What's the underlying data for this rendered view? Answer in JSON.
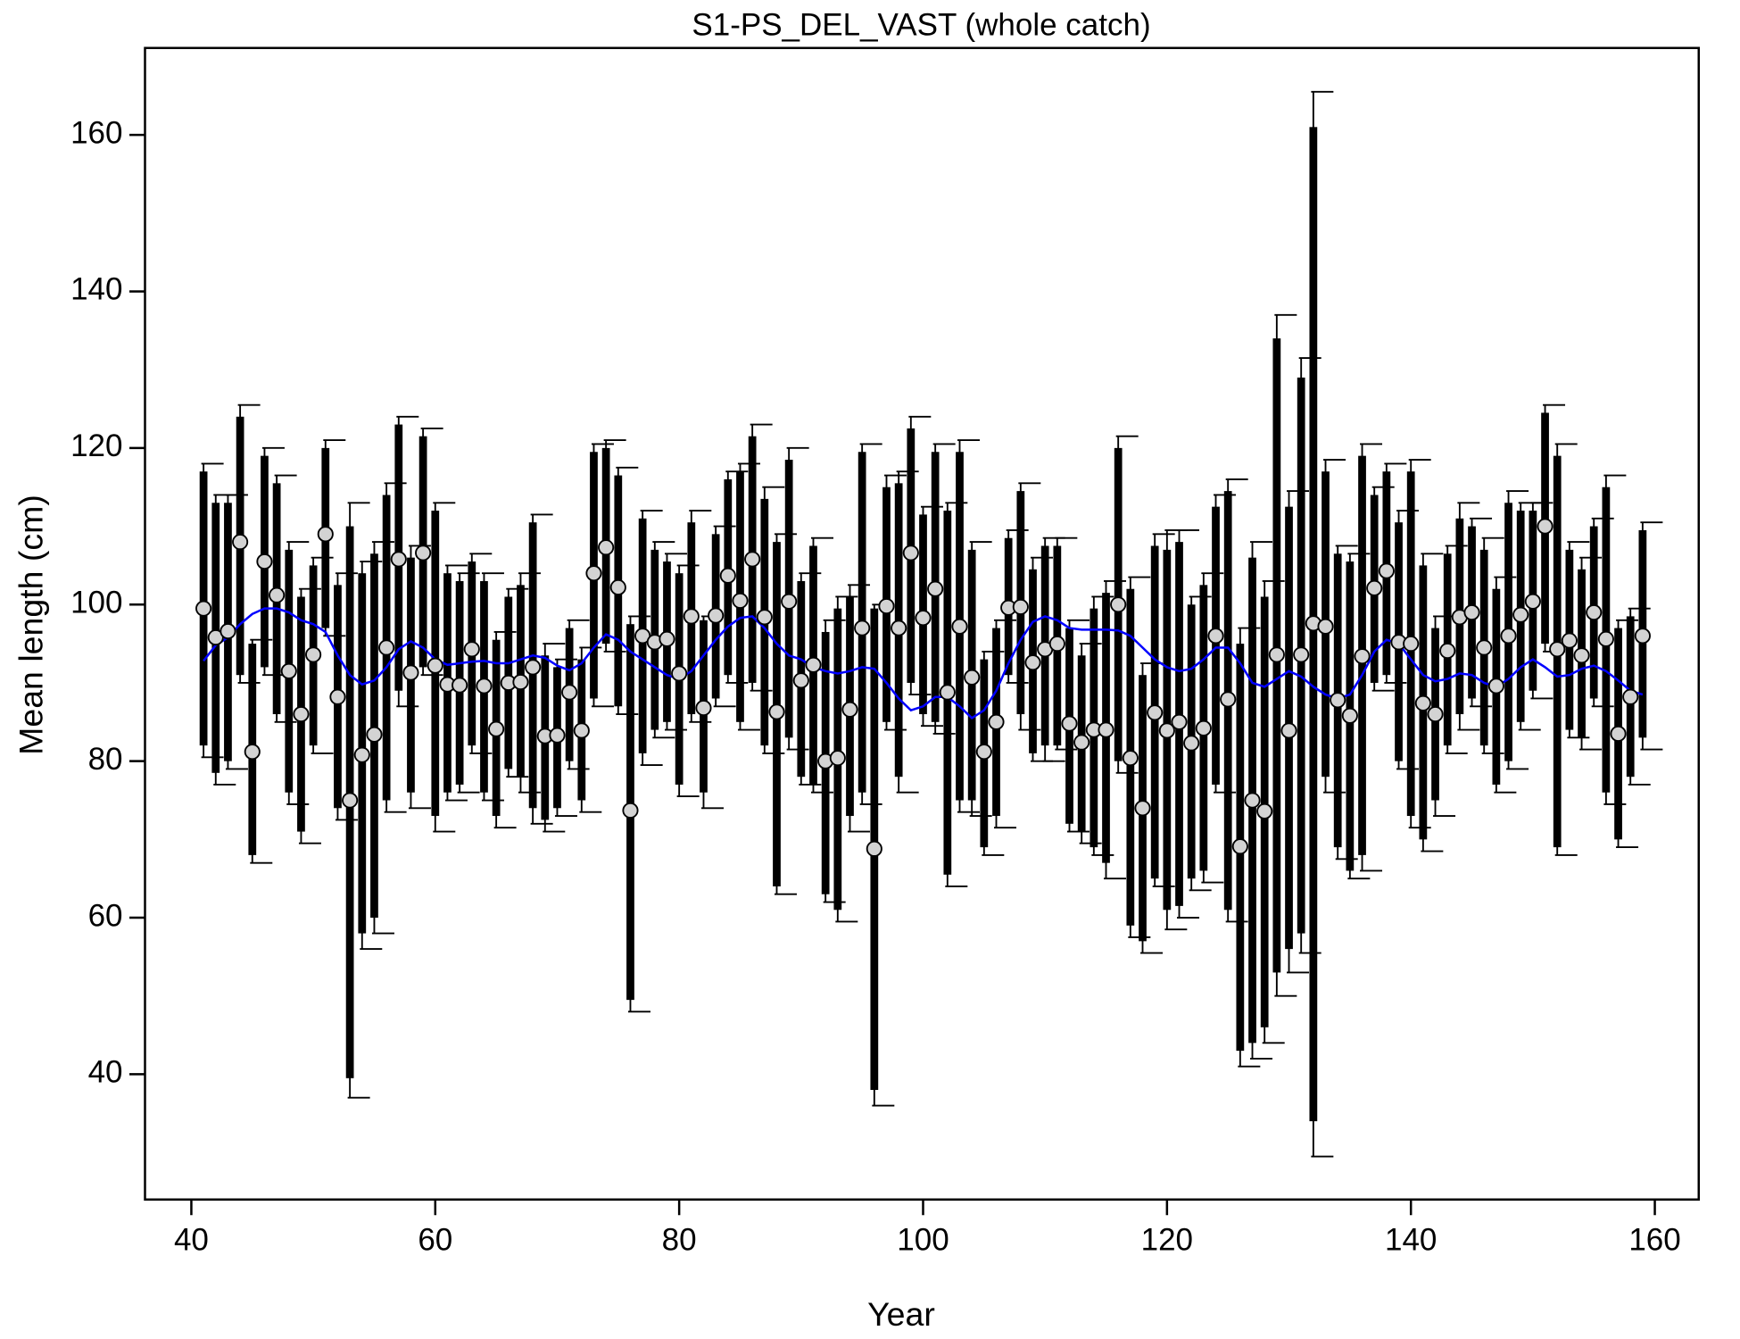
{
  "chart_data": {
    "type": "errorbar",
    "title": "S1-PS_DEL_VAST (whole catch)",
    "x_label": "Year",
    "y_label": "Mean length (cm)",
    "xlim": [
      36.2,
      163.6
    ],
    "ylim": [
      24.0,
      171.1
    ],
    "xticks": [
      40,
      60,
      80,
      100,
      120,
      140,
      160
    ],
    "yticks": [
      40,
      60,
      80,
      100,
      120,
      140,
      160
    ],
    "point_color": "#d3d3d3",
    "bar_color": "#000000",
    "smooth_color": "#0000ff",
    "x": [
      41,
      42,
      43,
      44,
      45,
      46,
      47,
      48,
      49,
      50,
      51,
      52,
      53,
      54,
      55,
      56,
      57,
      58,
      59,
      60,
      61,
      62,
      63,
      64,
      65,
      66,
      67,
      68,
      69,
      70,
      71,
      72,
      73,
      74,
      75,
      76,
      77,
      78,
      79,
      80,
      81,
      82,
      83,
      84,
      85,
      86,
      87,
      88,
      89,
      90,
      91,
      92,
      93,
      94,
      95,
      96,
      97,
      98,
      99,
      100,
      101,
      102,
      103,
      104,
      105,
      106,
      107,
      108,
      109,
      110,
      111,
      112,
      113,
      114,
      115,
      116,
      117,
      118,
      119,
      120,
      121,
      122,
      123,
      124,
      125,
      126,
      127,
      128,
      129,
      130,
      131,
      132,
      133,
      134,
      135,
      136,
      137,
      138,
      139,
      140,
      141,
      142,
      143,
      144,
      145,
      146,
      147,
      148,
      149,
      150,
      151,
      152,
      153,
      154,
      155,
      156,
      157,
      158,
      159
    ],
    "values": [
      99.5,
      95.8,
      96.6,
      108,
      81.2,
      105.5,
      101.2,
      91.5,
      86,
      93.6,
      109,
      88.2,
      75,
      80.8,
      83.4,
      94.5,
      105.8,
      91.3,
      106.6,
      92.2,
      89.8,
      89.7,
      94.3,
      89.6,
      84.1,
      90,
      90.1,
      92,
      83.2,
      83.3,
      88.8,
      83.9,
      104,
      107.3,
      102.2,
      73.7,
      96,
      95.2,
      95.6,
      91.2,
      98.5,
      86.8,
      98.6,
      103.7,
      100.5,
      105.8,
      98.4,
      86.3,
      100.4,
      90.3,
      92.3,
      80,
      80.4,
      86.6,
      97,
      68.8,
      99.8,
      97,
      106.6,
      98.3,
      102,
      88.8,
      97.2,
      90.7,
      81.2,
      85,
      99.6,
      99.7,
      92.6,
      94.3,
      95,
      84.8,
      82.4,
      84,
      84,
      100,
      80.4,
      74,
      86.2,
      83.9,
      85,
      82.3,
      84.2,
      96,
      87.9,
      69.1,
      75,
      73.6,
      93.6,
      83.9,
      93.6,
      97.6,
      97.2,
      87.8,
      85.8,
      93.4,
      102.1,
      104.3,
      95.2,
      95,
      87.4,
      86,
      94.1,
      98.4,
      99,
      94.5,
      89.6,
      96,
      98.7,
      100.4,
      110,
      94.3,
      95.4,
      93.5,
      99,
      95.6,
      83.5,
      88.2,
      96
    ],
    "interval_low": [
      82,
      78.5,
      80,
      91,
      68,
      92,
      86,
      76,
      71,
      82,
      97,
      74,
      39.5,
      58,
      60,
      75,
      89,
      76,
      92,
      73,
      76,
      77,
      82,
      76,
      73,
      79,
      78,
      74,
      72.5,
      74,
      80,
      75,
      88,
      95,
      87,
      49.5,
      81,
      84,
      85,
      77,
      86,
      76,
      88,
      91,
      85,
      90,
      82,
      64,
      83,
      78,
      77,
      63,
      61,
      73,
      76,
      38,
      85,
      78,
      90,
      86,
      85,
      65.5,
      75,
      75,
      69,
      73,
      91,
      86,
      81,
      82,
      82,
      72,
      71,
      69,
      67,
      80,
      59,
      57,
      65,
      61,
      61.5,
      65,
      66,
      77,
      61,
      43,
      44,
      46,
      53,
      56,
      58,
      34,
      78,
      69,
      66,
      68,
      90,
      91,
      80,
      73,
      70,
      75,
      82,
      86,
      88,
      82,
      77,
      80,
      85,
      89,
      95,
      69,
      84,
      83,
      88,
      76,
      70,
      78,
      83
    ],
    "interval_high": [
      117,
      113,
      113,
      124,
      95,
      119,
      115.5,
      107,
      101,
      105,
      120,
      102.5,
      110,
      104,
      106.5,
      114,
      123,
      106,
      121.5,
      112,
      104,
      103,
      105.5,
      103,
      95.5,
      101,
      102.5,
      110.5,
      93.5,
      92,
      97,
      93,
      119.5,
      120,
      116.5,
      97.5,
      111,
      107,
      105.5,
      104,
      110.5,
      98,
      109,
      116,
      117,
      121.5,
      113.5,
      108,
      118.5,
      103,
      107.5,
      96.5,
      99.5,
      101,
      119.5,
      99.5,
      115,
      115.5,
      122.5,
      111.5,
      119.5,
      112,
      119.5,
      107,
      93,
      97,
      108.5,
      114.5,
      104.5,
      107.5,
      107.5,
      97,
      93.5,
      99.5,
      101.5,
      120,
      102,
      91,
      107.5,
      107,
      108,
      100,
      102.5,
      112.5,
      114.5,
      95,
      106,
      101,
      134,
      112.5,
      129,
      161,
      117,
      106.5,
      105.5,
      119,
      114,
      117,
      110.5,
      117,
      105,
      97,
      106.5,
      111,
      110,
      107,
      102,
      113,
      112,
      112,
      124.5,
      119,
      107,
      104.5,
      110,
      115,
      97,
      98.5,
      109.5
    ],
    "whisker_low": [
      80.5,
      77,
      79,
      90,
      67,
      91,
      85,
      74.5,
      69.5,
      81,
      96,
      72.5,
      37,
      56,
      58,
      73.5,
      87,
      74,
      91,
      71,
      75,
      76,
      81,
      75,
      71.5,
      78,
      76,
      72,
      71,
      73,
      79,
      73.5,
      87,
      94,
      86,
      48,
      79.5,
      83,
      84,
      75.5,
      85,
      74,
      87,
      90,
      84,
      89,
      81,
      63,
      81.5,
      77,
      76,
      62,
      59.5,
      71,
      74.5,
      36,
      84,
      76,
      88.5,
      84.5,
      83.5,
      64,
      73.5,
      73,
      68,
      71.5,
      90,
      84,
      80,
      80,
      81.5,
      71,
      69.5,
      68,
      65,
      78.5,
      57.5,
      55.5,
      64,
      58.5,
      60,
      63.5,
      64.5,
      76,
      59.5,
      41,
      42,
      44,
      50,
      53,
      55.5,
      29.5,
      76,
      67.5,
      65,
      66,
      89,
      90,
      79,
      71.5,
      68.5,
      73,
      81,
      84,
      87,
      81,
      76,
      79,
      84,
      88,
      94,
      68,
      83,
      81.5,
      87,
      74.5,
      69,
      77,
      81.5
    ],
    "whisker_high": [
      118,
      114,
      114,
      125.5,
      95.5,
      120,
      116.5,
      108,
      102,
      106,
      121,
      104,
      113,
      105.5,
      108,
      115.5,
      124,
      107.5,
      122.5,
      113,
      105,
      104,
      106.5,
      104,
      96.5,
      102,
      104,
      111.5,
      95,
      93,
      98,
      94.5,
      120.5,
      121,
      117.5,
      98.5,
      112,
      108,
      106.5,
      105,
      112,
      98.5,
      110,
      117,
      118,
      123,
      115,
      109,
      120,
      104,
      108.5,
      98,
      101,
      102.5,
      120.5,
      100,
      116.5,
      117,
      124,
      112.5,
      120.5,
      113,
      121,
      108,
      94,
      98,
      109.5,
      115.5,
      106,
      108.5,
      108.5,
      98,
      95,
      101,
      103,
      121.5,
      103.5,
      92.5,
      109,
      109.5,
      109.5,
      101,
      104,
      114,
      116,
      97,
      108,
      103,
      137,
      114.5,
      131.5,
      165.5,
      118.5,
      107.5,
      106.5,
      120.5,
      115,
      118,
      112,
      118.5,
      106.5,
      98.5,
      107.5,
      113,
      111,
      108.5,
      103.5,
      114.5,
      113,
      113,
      125.5,
      120.5,
      108,
      106,
      111,
      116.5,
      98,
      99.5,
      110.5
    ],
    "smooth_values": [
      92.8,
      94.8,
      95.8,
      97.5,
      98.8,
      99.5,
      99.5,
      99,
      98,
      97.5,
      96.5,
      93.5,
      91,
      89.8,
      90.3,
      92,
      94.3,
      95.3,
      94.5,
      93,
      92.3,
      92.5,
      92.7,
      92.8,
      92.5,
      92.5,
      93,
      93.5,
      93.2,
      92.2,
      91.6,
      92.5,
      94.5,
      96.2,
      95.5,
      94,
      93,
      92,
      91,
      90.5,
      91.5,
      93.5,
      95.5,
      97.2,
      98.3,
      98.5,
      97,
      95,
      93.5,
      93,
      92,
      91.5,
      91.2,
      91.5,
      92,
      91.8,
      90,
      88,
      86.5,
      87,
      88.2,
      88.2,
      87,
      85.5,
      86.5,
      89,
      92.5,
      95.5,
      97.8,
      98.5,
      98,
      97,
      96.8,
      96.8,
      96.8,
      96.7,
      96,
      94.5,
      93,
      92,
      91.5,
      91.8,
      93,
      94.5,
      94.5,
      92.5,
      90,
      89.5,
      90.5,
      91.5,
      90.8,
      89.5,
      88.5,
      88,
      88.5,
      91,
      94,
      95.5,
      95,
      93,
      91,
      90.2,
      90.5,
      91.2,
      91,
      90,
      89.5,
      90.5,
      92,
      93,
      92,
      90.8,
      91,
      91.8,
      92.2,
      91.5,
      90.3,
      89,
      88.5
    ]
  }
}
